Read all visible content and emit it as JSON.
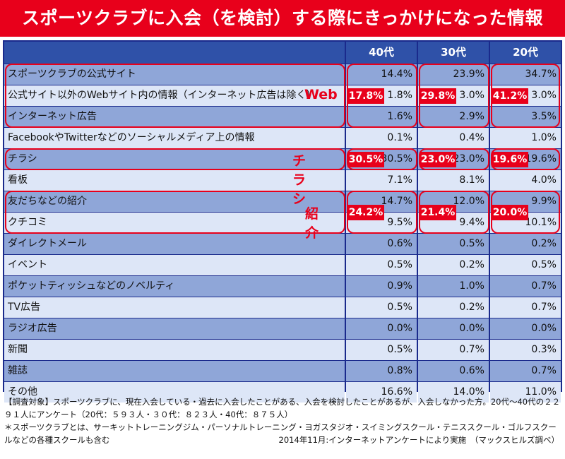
{
  "title": "スポーツクラブに入会（を検討）する際にきっかけになった情報",
  "chart_data": {
    "type": "table",
    "columns": [
      "40代",
      "30代",
      "20代"
    ],
    "rows": [
      {
        "label": "スポーツクラブの公式サイト",
        "values": [
          "14.4%",
          "23.9%",
          "34.7%"
        ]
      },
      {
        "label": "公式サイト以外のWebサイト内の情報（インターネット広告は除く）",
        "values": [
          "1.8%",
          "3.0%",
          "3.0%"
        ]
      },
      {
        "label": "インターネット広告",
        "values": [
          "1.6%",
          "2.9%",
          "3.5%"
        ]
      },
      {
        "label": "FacebookやTwitterなどのソーシャルメディア上の情報",
        "values": [
          "0.1%",
          "0.4%",
          "1.0%"
        ]
      },
      {
        "label": "チラシ",
        "values": [
          "30.5%",
          "23.0%",
          "19.6%"
        ]
      },
      {
        "label": "看板",
        "values": [
          "7.1%",
          "8.1%",
          "4.0%"
        ]
      },
      {
        "label": "友だちなどの紹介",
        "values": [
          "14.7%",
          "12.0%",
          "9.9%"
        ]
      },
      {
        "label": "クチコミ",
        "values": [
          "9.5%",
          "9.4%",
          "10.1%"
        ]
      },
      {
        "label": "ダイレクトメール",
        "values": [
          "0.6%",
          "0.5%",
          "0.2%"
        ]
      },
      {
        "label": "イベント",
        "values": [
          "0.5%",
          "0.2%",
          "0.5%"
        ]
      },
      {
        "label": "ポケットティッシュなどのノベルティ",
        "values": [
          "0.9%",
          "1.0%",
          "0.7%"
        ]
      },
      {
        "label": "TV広告",
        "values": [
          "0.5%",
          "0.2%",
          "0.7%"
        ]
      },
      {
        "label": "ラジオ広告",
        "values": [
          "0.0%",
          "0.0%",
          "0.0%"
        ]
      },
      {
        "label": "新聞",
        "values": [
          "0.5%",
          "0.7%",
          "0.3%"
        ]
      },
      {
        "label": "雑誌",
        "values": [
          "0.8%",
          "0.6%",
          "0.7%"
        ]
      },
      {
        "label": "その他",
        "values": [
          "16.6%",
          "14.0%",
          "11.0%"
        ]
      }
    ],
    "groups": [
      {
        "name": "Web",
        "rows": [
          0,
          1,
          2
        ],
        "totals": [
          "17.8%",
          "29.8%",
          "41.2%"
        ]
      },
      {
        "name": "チラシ",
        "rows": [
          4
        ],
        "totals": [
          "30.5%",
          "23.0%",
          "19.6%"
        ]
      },
      {
        "name": "紹介",
        "rows": [
          6,
          7
        ],
        "totals": [
          "24.2%",
          "21.4%",
          "20.0%"
        ]
      }
    ],
    "colors": {
      "title_bg": "#e8001b",
      "header_bg": "#2f51a8",
      "row_dark": "#8fa6d8",
      "row_light": "#dde6f7",
      "highlight": "#e8001b"
    }
  },
  "footer": {
    "line1": "【調査対象】スポーツクラブに、現在入会している・過去に入会したことがある、入会を検討したことがあるが、入会しなかった方。20代～40代の２２９１人にアンケート（20代：５９３人・３０代：８２３人・40代：８７５人）",
    "line2": "＊スポーツクラブとは、サーキットトレーニングジム・パーソナルトレーニング・ヨガスタジオ・スイミングスクール・テニススクール・ゴルフスクールなどの各種スクールも含む",
    "line3": "2014年11月:インターネットアンケートにより実施　（マックスヒルズ調べ）"
  }
}
